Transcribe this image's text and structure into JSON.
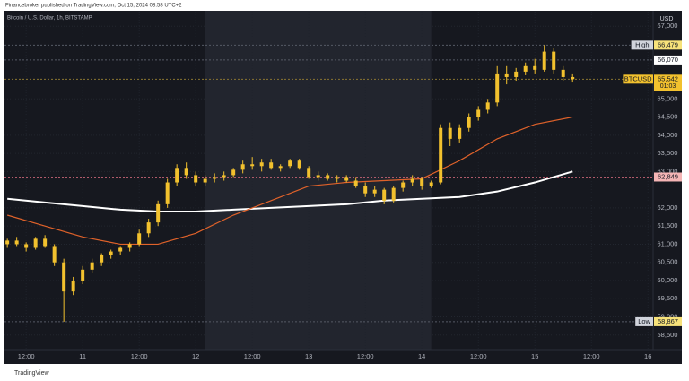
{
  "header": {
    "publisher": "Financebroker published on TradingView.com, Oct 15, 2024 08:58 UTC+2"
  },
  "footer": {
    "brand": "TradingView"
  },
  "chart_data": {
    "type": "candlestick",
    "title": "Bitcoin / U.S. Dollar, 1h, BITSTAMP",
    "y_unit": "USD",
    "up_color": "#f2c12e",
    "down_color": "#f2c12e",
    "background": "#16181f",
    "highlight_color": "#22252e",
    "highlight_xrange": [
      50,
      98
    ],
    "grid": true,
    "x": [
      8,
      10,
      12,
      14,
      16,
      18,
      20,
      22,
      24,
      26,
      28,
      30,
      32,
      34,
      36,
      38,
      40,
      42,
      44,
      46,
      48,
      50,
      52,
      54,
      56,
      58,
      60,
      62,
      64,
      66,
      68,
      70,
      72,
      74,
      76,
      78,
      80,
      82,
      84,
      86,
      88,
      90,
      92,
      94,
      96,
      98,
      100,
      102,
      104,
      106,
      108,
      110,
      112,
      114,
      116,
      118,
      120,
      122,
      124,
      126,
      128
    ],
    "open": [
      61000,
      61100,
      61000,
      60900,
      61150,
      60950,
      60500,
      59700,
      60000,
      60300,
      60500,
      60700,
      60800,
      60900,
      61000,
      61300,
      61600,
      62100,
      62700,
      63100,
      62900,
      62700,
      62800,
      62850,
      62900,
      63050,
      63200,
      63150,
      63250,
      63100,
      63150,
      63300,
      63100,
      62850,
      62900,
      62800,
      62850,
      62750,
      62600,
      62400,
      62500,
      62200,
      62550,
      62700,
      62800,
      62600,
      62700,
      64200,
      63900,
      64200,
      64500,
      64700,
      64900,
      65700,
      65600,
      65750,
      65900,
      65800,
      66300,
      65800,
      65600
    ],
    "high": [
      61150,
      61200,
      61050,
      61200,
      61250,
      61000,
      60600,
      60100,
      60400,
      60600,
      60750,
      60850,
      60950,
      61050,
      61400,
      61700,
      62200,
      62800,
      63200,
      63250,
      63000,
      62900,
      62950,
      63000,
      63100,
      63300,
      63400,
      63350,
      63350,
      63200,
      63350,
      63350,
      63150,
      63000,
      62950,
      62900,
      62900,
      62850,
      62700,
      62600,
      62550,
      62600,
      62750,
      62900,
      62850,
      62750,
      64300,
      64350,
      64300,
      64600,
      64800,
      65000,
      65900,
      65900,
      65850,
      66000,
      66100,
      66479,
      66400,
      65900,
      65700
    ],
    "low": [
      60900,
      60950,
      60800,
      60850,
      60900,
      60400,
      58867,
      59600,
      59900,
      60200,
      60400,
      60600,
      60700,
      60800,
      60950,
      61200,
      61500,
      62000,
      62600,
      62800,
      62600,
      62600,
      62700,
      62750,
      62850,
      62950,
      63050,
      63000,
      63050,
      63000,
      63100,
      63050,
      62800,
      62750,
      62750,
      62700,
      62700,
      62550,
      62300,
      62300,
      62100,
      62150,
      62450,
      62600,
      62500,
      62550,
      62650,
      63700,
      63800,
      64100,
      64400,
      64600,
      64800,
      65400,
      65500,
      65650,
      65700,
      65750,
      65700,
      65500,
      65450
    ],
    "close": [
      61100,
      61000,
      60900,
      61150,
      60950,
      60500,
      59700,
      60000,
      60300,
      60500,
      60700,
      60800,
      60900,
      61000,
      61300,
      61600,
      62100,
      62700,
      63100,
      62900,
      62700,
      62800,
      62850,
      62900,
      63050,
      63200,
      63150,
      63250,
      63100,
      63150,
      63300,
      63100,
      62850,
      62900,
      62800,
      62850,
      62750,
      62600,
      62400,
      62500,
      62200,
      62550,
      62700,
      62800,
      62600,
      62700,
      64200,
      63900,
      64200,
      64500,
      64700,
      64900,
      65700,
      65600,
      65750,
      65900,
      65800,
      66300,
      65800,
      65600,
      65542
    ],
    "lines": [
      {
        "color": "#ffffff",
        "x": [
          8,
          16,
          24,
          32,
          40,
          48,
          56,
          64,
          72,
          80,
          88,
          96,
          104,
          112,
          120,
          128
        ],
        "values": [
          62250,
          62150,
          62050,
          61950,
          61900,
          61900,
          61950,
          62000,
          62050,
          62100,
          62200,
          62250,
          62300,
          62450,
          62700,
          63000
        ]
      },
      {
        "color": "#e0622a",
        "x": [
          8,
          16,
          24,
          32,
          40,
          48,
          56,
          64,
          72,
          80,
          88,
          96,
          104,
          112,
          120,
          128
        ],
        "values": [
          61800,
          61500,
          61200,
          61000,
          61000,
          61300,
          61800,
          62200,
          62600,
          62700,
          62750,
          62800,
          63300,
          63900,
          64300,
          64500
        ]
      }
    ],
    "price_labels": [
      {
        "name": "High",
        "value": 66479,
        "value_label": "66,479",
        "color": "#f7e27a",
        "line_color": "#555a66"
      },
      {
        "value": 66070,
        "value_label": "66,070",
        "color": "#ffffff",
        "line_color": "#555a66"
      },
      {
        "name": "BTCUSD",
        "value": 65542,
        "value_label": "65,542",
        "countdown": "01:03",
        "color": "#f2c12e",
        "line_color": "#8a7530"
      },
      {
        "value": 62849,
        "value_label": "62,849",
        "color": "#f5b5b5",
        "line_color": "#b05a6a"
      },
      {
        "name": "Low",
        "value": 58867,
        "value_label": "58,867",
        "color": "#f7e27a",
        "line_color": "#555a66"
      }
    ],
    "xlim": [
      7.4,
      145.1
    ],
    "ylim": [
      58100,
      67400
    ],
    "xticks": [
      {
        "value": 12,
        "label": "12:00"
      },
      {
        "value": 24,
        "label": "11"
      },
      {
        "value": 36,
        "label": "12:00"
      },
      {
        "value": 48,
        "label": "12"
      },
      {
        "value": 60,
        "label": "12:00"
      },
      {
        "value": 72,
        "label": "13"
      },
      {
        "value": 84,
        "label": "12:00"
      },
      {
        "value": 96,
        "label": "14"
      },
      {
        "value": 108,
        "label": "12:00"
      },
      {
        "value": 120,
        "label": "15"
      },
      {
        "value": 132,
        "label": "12:00"
      },
      {
        "value": 144,
        "label": "16"
      }
    ],
    "yticks": [
      {
        "value": 67000,
        "label": "67,000"
      },
      {
        "value": 65000,
        "label": "65,000"
      },
      {
        "value": 64500,
        "label": "64,500"
      },
      {
        "value": 64000,
        "label": "64,000"
      },
      {
        "value": 63500,
        "label": "63,500"
      },
      {
        "value": 63000,
        "label": "63,000"
      },
      {
        "value": 62000,
        "label": "62,000"
      },
      {
        "value": 61500,
        "label": "61,500"
      },
      {
        "value": 61000,
        "label": "61,000"
      },
      {
        "value": 60500,
        "label": "60,500"
      },
      {
        "value": 60000,
        "label": "60,000"
      },
      {
        "value": 59500,
        "label": "59,500"
      },
      {
        "value": 59000,
        "label": "59,000"
      },
      {
        "value": 58500,
        "label": "58,500"
      }
    ]
  }
}
